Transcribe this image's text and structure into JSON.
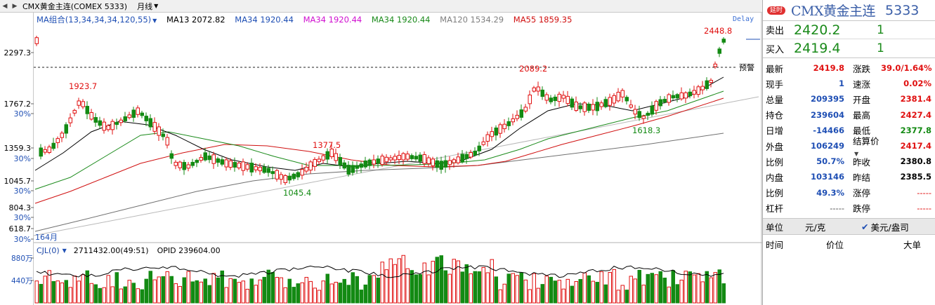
{
  "toolbar": {
    "symbol": "CMX黄金主连(COMEX 5333)",
    "period": "月线"
  },
  "ma_bar": {
    "combo": "MA组合(13,34,34,34,120,55)",
    "ma13": "MA13 2072.82",
    "ma34a": "MA34 1920.44",
    "ma34b": "MA34 1920.44",
    "ma34c": "MA34 1920.44",
    "ma120": "MA120 1534.29",
    "ma55": "MA55 1859.35",
    "delay": "Delay"
  },
  "price_axis": {
    "labels": [
      "2297.3",
      "1767.2",
      "30%",
      "1359.3",
      "30%",
      "1045.7",
      "30%",
      "804.3",
      "30%",
      "618.7",
      "30%"
    ],
    "months": "164月"
  },
  "annotations": {
    "high_label": "2448.8",
    "p2089": "2089.2",
    "p1923": "1923.7",
    "p1377": "1377.5",
    "p1045": "1045.4",
    "p1618": "1618.3",
    "alert": "预警"
  },
  "volume": {
    "indicator": "CJL(0)",
    "values": "2711432.00(49:51)",
    "opid": "OPID 239604.00",
    "axis_labels": [
      "880万",
      "440万"
    ]
  },
  "chart_data": {
    "type": "candlestick",
    "title": "CMX黄金主连(COMEX 5333) 月线",
    "y_scale": "log",
    "labeled_points": [
      {
        "label": "1923.7",
        "value": 1923.7
      },
      {
        "label": "1377.5",
        "value": 1377.5
      },
      {
        "label": "1045.4",
        "value": 1045.4
      },
      {
        "label": "2089.2",
        "value": 2089.2
      },
      {
        "label": "1618.3",
        "value": 1618.3
      },
      {
        "label": "2448.8",
        "value": 2448.8
      }
    ],
    "series": [
      {
        "name": "MA13",
        "value": 2072.82,
        "color": "#000000"
      },
      {
        "name": "MA34",
        "value": 1920.44,
        "color": "#1a8a1a"
      },
      {
        "name": "MA120",
        "value": 1534.29,
        "color": "#606060"
      },
      {
        "name": "MA55",
        "value": 1859.35,
        "color": "#d01010"
      }
    ],
    "volume_axis": [
      "880万",
      "440万"
    ]
  },
  "panel": {
    "badge": "延时",
    "name": "CMX黄金主连",
    "code": "5333",
    "sell_label": "卖出",
    "sell_price": "2420.2",
    "sell_qty": "1",
    "buy_label": "买入",
    "buy_price": "2419.4",
    "buy_qty": "1",
    "rows": [
      {
        "l1": "最新",
        "v1": "2419.8",
        "c1": "red",
        "l2": "涨跌",
        "v2": "39.0/1.64%",
        "c2": "red"
      },
      {
        "l1": "现手",
        "v1": "1",
        "c1": "blue",
        "l2": "速涨",
        "v2": "0.02%",
        "c2": "red"
      },
      {
        "l1": "总量",
        "v1": "209395",
        "c1": "blue",
        "l2": "开盘",
        "v2": "2381.4",
        "c2": "red"
      },
      {
        "l1": "持仓",
        "v1": "239604",
        "c1": "blue",
        "l2": "最高",
        "v2": "2427.4",
        "c2": "red"
      },
      {
        "l1": "日增",
        "v1": "-14466",
        "c1": "blue",
        "l2": "最低",
        "v2": "2377.8",
        "c2": "green"
      },
      {
        "l1": "外盘",
        "v1": "106249",
        "c1": "blue",
        "l2": "结算价",
        "v2": "2417.4",
        "c2": "red"
      },
      {
        "l1": "比例",
        "v1": "50.7%",
        "c1": "blue",
        "l2": "昨收",
        "v2": "2380.8",
        "c2": "black"
      },
      {
        "l1": "内盘",
        "v1": "103146",
        "c1": "blue",
        "l2": "昨结",
        "v2": "2385.5",
        "c2": "black"
      },
      {
        "l1": "比例",
        "v1": "49.3%",
        "c1": "blue",
        "l2": "涨停",
        "v2": "-----",
        "c2": "dash"
      },
      {
        "l1": "杠杆",
        "v1": "-----",
        "c1": "dashblk",
        "l2": "跌停",
        "v2": "-----",
        "c2": "dash2"
      }
    ],
    "unit_label": "单位",
    "unit_value": "元/克",
    "unit_alt": "美元/盎司",
    "trade_cols": [
      "时间",
      "价位",
      "大单"
    ]
  },
  "colors": {
    "up": "#e01010",
    "down": "#138a13",
    "ma13": "#000000",
    "ma34": "#1a8a1a",
    "ma55": "#d01010",
    "ma120": "#606060"
  }
}
